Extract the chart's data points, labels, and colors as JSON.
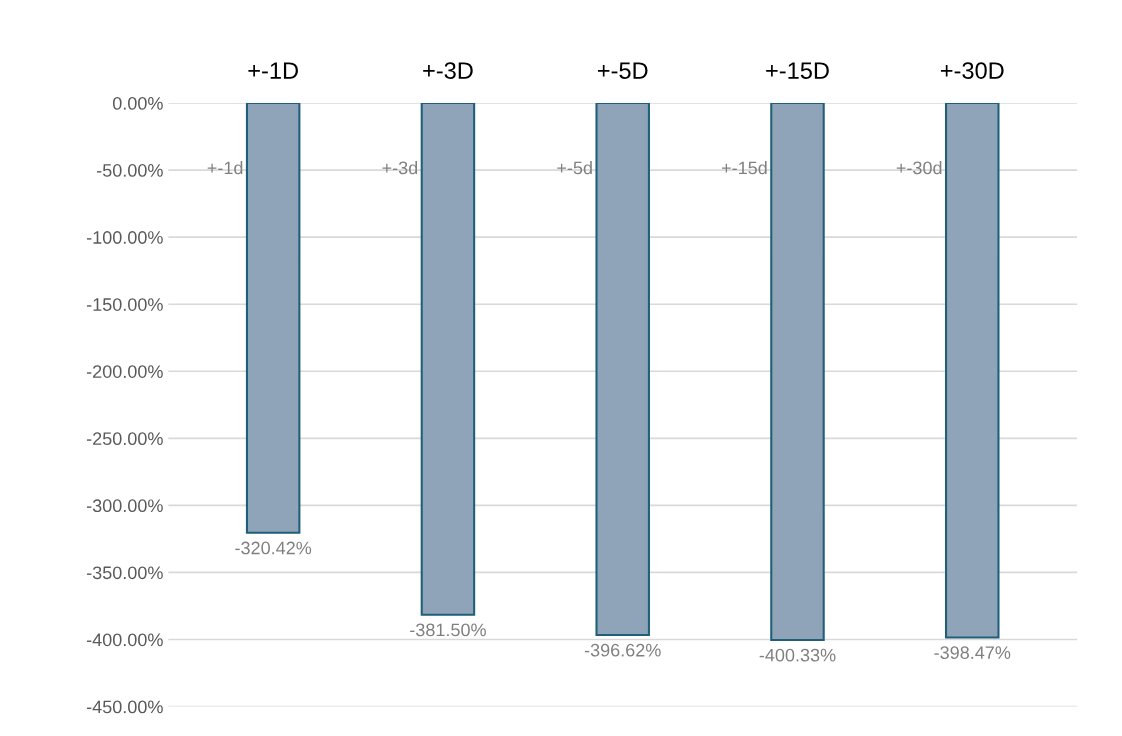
{
  "chart_data": {
    "type": "bar",
    "categories": [
      "+-1D",
      "+-3D",
      "+-5D",
      "+-15D",
      "+-30D"
    ],
    "values": [
      -320.42,
      -381.5,
      -396.62,
      -400.33,
      -398.47
    ],
    "value_labels": [
      "-320.42%",
      "-381.50%",
      "-396.62%",
      "-400.33%",
      "-398.47%"
    ],
    "color": "#8fa4b8",
    "ylim": [
      -450,
      0
    ],
    "yticks": [
      {
        "value": 0,
        "label": "0.00%"
      },
      {
        "value": -50,
        "label": "-50.00%"
      },
      {
        "value": -100,
        "label": "-100.00%"
      },
      {
        "value": -150,
        "label": "-150.00%"
      },
      {
        "value": -200,
        "label": "-200.00%"
      },
      {
        "value": -250,
        "label": "-250.00%"
      },
      {
        "value": -300,
        "label": "-300.00%"
      },
      {
        "value": -350,
        "label": "-350.00%"
      },
      {
        "value": -400,
        "label": "-400.00%"
      },
      {
        "value": -450,
        "label": "-450.00%"
      }
    ],
    "grid": "y",
    "annotations": [
      "+-1d",
      "+-3d",
      "+-5d",
      "+-15d",
      "+-30d"
    ]
  }
}
